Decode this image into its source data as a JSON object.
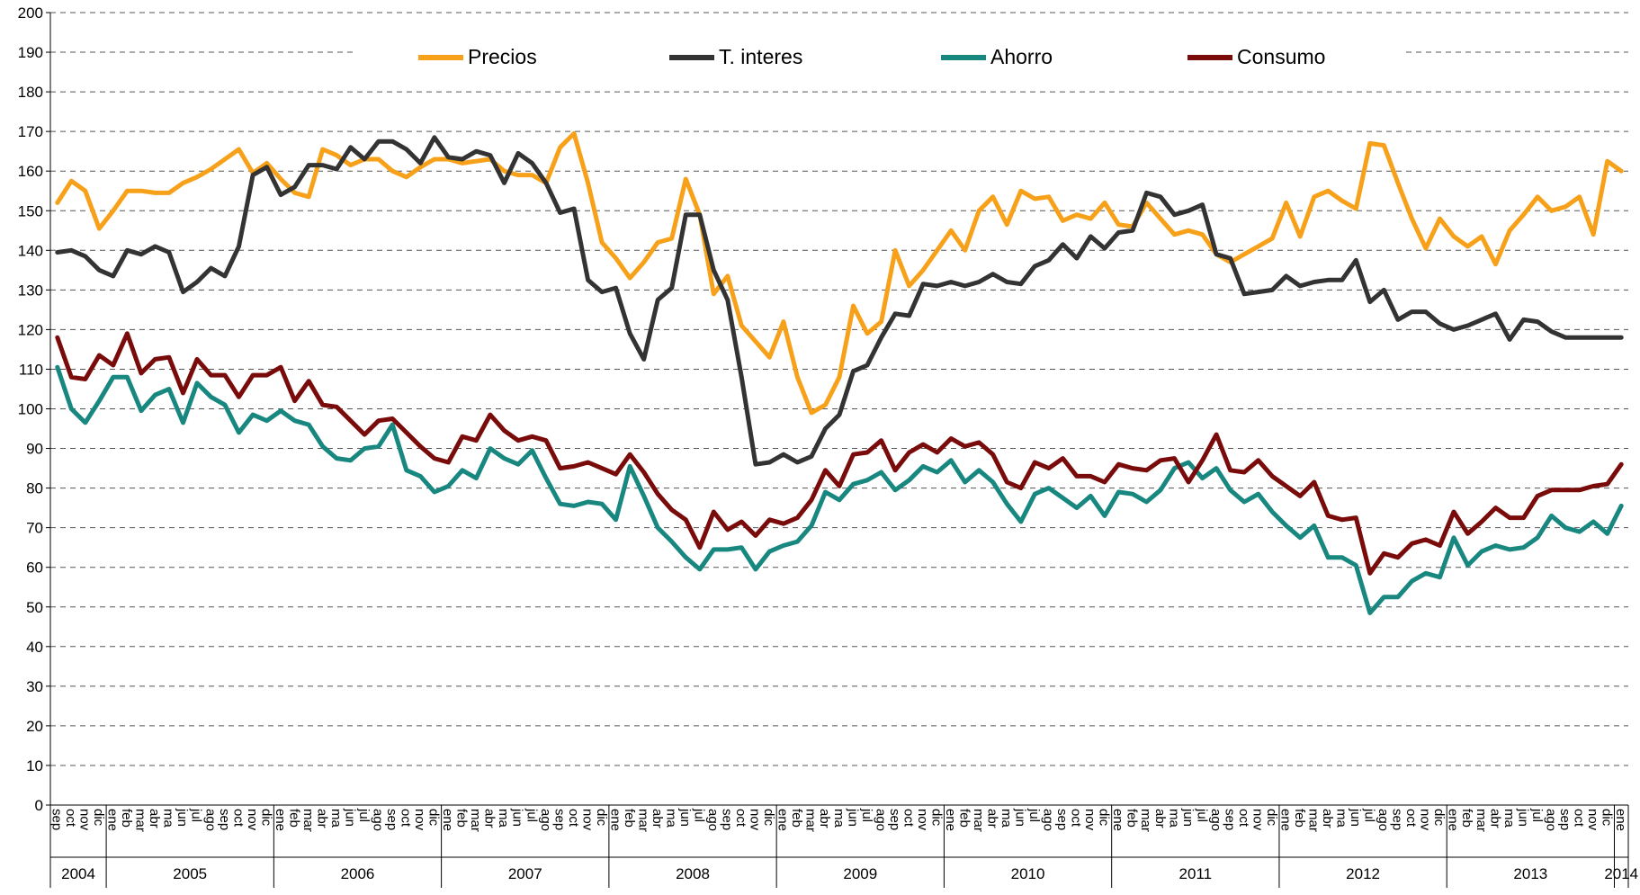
{
  "chart_data": {
    "type": "line",
    "category_groups": [
      {
        "label": "2004",
        "categories": [
          "sep",
          "oct",
          "nov",
          "dic"
        ]
      },
      {
        "label": "2005",
        "categories": [
          "ene",
          "feb",
          "mar",
          "abr",
          "ma",
          "jun",
          "jul",
          "ago",
          "sep",
          "oct",
          "nov",
          "dic"
        ]
      },
      {
        "label": "2006",
        "categories": [
          "ene",
          "feb",
          "mar",
          "abr",
          "ma",
          "jun",
          "jul",
          "ago",
          "sep",
          "oct",
          "nov",
          "dic"
        ]
      },
      {
        "label": "2007",
        "categories": [
          "ene",
          "feb",
          "mar",
          "abr",
          "ma",
          "jun",
          "jul",
          "ago",
          "sep",
          "oct",
          "nov",
          "dic"
        ]
      },
      {
        "label": "2008",
        "categories": [
          "ene",
          "feb",
          "mar",
          "abr",
          "ma",
          "jun",
          "jul",
          "ago",
          "sep",
          "oct",
          "nov",
          "dic"
        ]
      },
      {
        "label": "2009",
        "categories": [
          "ene",
          "feb",
          "mar",
          "abr",
          "ma",
          "jun",
          "jul",
          "ago",
          "sep",
          "oct",
          "nov",
          "dic"
        ]
      },
      {
        "label": "2010",
        "categories": [
          "ene",
          "feb",
          "mar",
          "abr",
          "ma",
          "jun",
          "jul",
          "ago",
          "sep",
          "oct",
          "nov",
          "dic"
        ]
      },
      {
        "label": "2011",
        "categories": [
          "ene",
          "feb",
          "mar",
          "abr",
          "ma",
          "jun",
          "jul",
          "ago",
          "sep",
          "oct",
          "nov",
          "dic"
        ]
      },
      {
        "label": "2012",
        "categories": [
          "ene",
          "feb",
          "mar",
          "abr",
          "ma",
          "jun",
          "jul",
          "ago",
          "sep",
          "oct",
          "nov",
          "dic"
        ]
      },
      {
        "label": "2013",
        "categories": [
          "ene",
          "feb",
          "mar",
          "abr",
          "ma",
          "jun",
          "jul",
          "ago",
          "sep",
          "oct",
          "nov",
          "dic"
        ]
      },
      {
        "label": "2014",
        "categories": [
          "ene"
        ]
      }
    ],
    "series": [
      {
        "name": "Precios",
        "color": "#f7a11a",
        "values": [
          152,
          157.5,
          155,
          145.5,
          150,
          155,
          155,
          154.5,
          154.5,
          157,
          158.5,
          160.5,
          163,
          165.5,
          159.5,
          162,
          158,
          154.5,
          153.5,
          165.5,
          164,
          161.5,
          163,
          163,
          160,
          158.5,
          161,
          163,
          163,
          162,
          162.5,
          163,
          160,
          159,
          159,
          157,
          166,
          169.5,
          157,
          142,
          138,
          133,
          137,
          142,
          143,
          158,
          149,
          129,
          133.5,
          121,
          117,
          113,
          122,
          108,
          99,
          101,
          108,
          126,
          119,
          122,
          140,
          131,
          135,
          140,
          145,
          140,
          150,
          153.5,
          146.5,
          155,
          153,
          153.5,
          147.5,
          149,
          148,
          152,
          146.5,
          146,
          152,
          148,
          144,
          145,
          144,
          139,
          137,
          139,
          141,
          143,
          152,
          143.5,
          153.5,
          155,
          152.5,
          150.5,
          167,
          166.5,
          157,
          148,
          140.5,
          148,
          143.5,
          141,
          143.5,
          136.5,
          145,
          149,
          153.5,
          150,
          151,
          153.5,
          144,
          162.5,
          160
        ]
      },
      {
        "name": "T. interes",
        "color": "#333333",
        "values": [
          139.5,
          140,
          138.5,
          135,
          133.5,
          140,
          139,
          141,
          139.5,
          129.5,
          132,
          135.5,
          133.5,
          141,
          159,
          161,
          154,
          156,
          161.5,
          161.5,
          160.5,
          166,
          163,
          167.5,
          167.5,
          165.5,
          162,
          168.5,
          163.5,
          163,
          165,
          164,
          157,
          164.5,
          162,
          157,
          149.5,
          150.5,
          132.5,
          129.5,
          130.5,
          119,
          112.5,
          127.5,
          130.5,
          149,
          149,
          135,
          127.5,
          108,
          86,
          86.5,
          88.5,
          86.5,
          88,
          95,
          98.5,
          109.5,
          111,
          118,
          124,
          123.5,
          131.5,
          131,
          132,
          131,
          132,
          134,
          132,
          131.5,
          136,
          137.5,
          141.5,
          138,
          143.5,
          140.5,
          144.5,
          145,
          154.5,
          153.5,
          149,
          150,
          151.5,
          139,
          138,
          129,
          129.5,
          130,
          133.5,
          131,
          132,
          132.5,
          132.5,
          137.5,
          127,
          130,
          122.5,
          124.5,
          124.5,
          121.5,
          120,
          121,
          122.5,
          124,
          117.5,
          122.5,
          122,
          119.5,
          118,
          118,
          118,
          118,
          118
        ]
      },
      {
        "name": "Ahorro",
        "color": "#17877f",
        "values": [
          110.5,
          100,
          96.5,
          102,
          108,
          108,
          99.5,
          103.5,
          105,
          96.5,
          106.5,
          103,
          101,
          94,
          98.5,
          97,
          99.5,
          97,
          96,
          90.5,
          87.5,
          87,
          90,
          90.5,
          96,
          84.5,
          83,
          79,
          80.5,
          84.5,
          82.5,
          90,
          87.5,
          86,
          89.5,
          82.5,
          76,
          75.5,
          76.5,
          76,
          72,
          85.5,
          78,
          70,
          66.5,
          62.5,
          59.5,
          64.5,
          64.5,
          65,
          59.5,
          64,
          65.5,
          66.5,
          70.5,
          79,
          77,
          81,
          82,
          84,
          79.5,
          82,
          85.5,
          84,
          87,
          81.5,
          84.5,
          81.5,
          76,
          71.5,
          78.5,
          80,
          77.5,
          75,
          78,
          73,
          79,
          78.5,
          76.5,
          79.5,
          85,
          86.5,
          82.5,
          85,
          79.5,
          76.5,
          78.5,
          74,
          70.5,
          67.5,
          70.5,
          62.5,
          62.5,
          60.5,
          48.5,
          52.5,
          52.5,
          56.5,
          58.5,
          57.5,
          67.5,
          60.5,
          64,
          65.5,
          64.5,
          65,
          67.5,
          73,
          70,
          69,
          71.5,
          68.5,
          75.5
        ]
      },
      {
        "name": "Consumo",
        "color": "#7a0b0b",
        "values": [
          118,
          108,
          107.5,
          113.5,
          111,
          119,
          109,
          112.5,
          113,
          104,
          112.5,
          108.5,
          108.5,
          103,
          108.5,
          108.5,
          110.5,
          102,
          107,
          101,
          100.5,
          97,
          93.5,
          97,
          97.5,
          94,
          90.5,
          87.5,
          86.5,
          93,
          92,
          98.5,
          94.5,
          92,
          93,
          92,
          85,
          85.5,
          86.5,
          85,
          83.5,
          88.5,
          84,
          78.5,
          74.5,
          72,
          65,
          74,
          69.5,
          71.5,
          68,
          72,
          71,
          72.5,
          77,
          84.5,
          80.5,
          88.5,
          89,
          92,
          84.5,
          89,
          91,
          89,
          92.5,
          90.5,
          91.5,
          88.5,
          81.5,
          80,
          86.5,
          85,
          87.5,
          83,
          83,
          81.5,
          86,
          85,
          84.5,
          87,
          87.5,
          81.5,
          87,
          93.5,
          84.5,
          84,
          87,
          83,
          80.5,
          78,
          81.5,
          73,
          72,
          72.5,
          58.5,
          63.5,
          62.5,
          66,
          67,
          65.5,
          74,
          68.5,
          71.5,
          75,
          72.5,
          72.5,
          78,
          79.5,
          79.5,
          79.5,
          80.5,
          81,
          86
        ]
      }
    ],
    "ylim": [
      0,
      200
    ],
    "yticks": [
      0,
      10,
      20,
      30,
      40,
      50,
      60,
      70,
      80,
      90,
      100,
      110,
      120,
      130,
      140,
      150,
      160,
      170,
      180,
      190,
      200
    ],
    "grid": true,
    "legend": "top"
  }
}
